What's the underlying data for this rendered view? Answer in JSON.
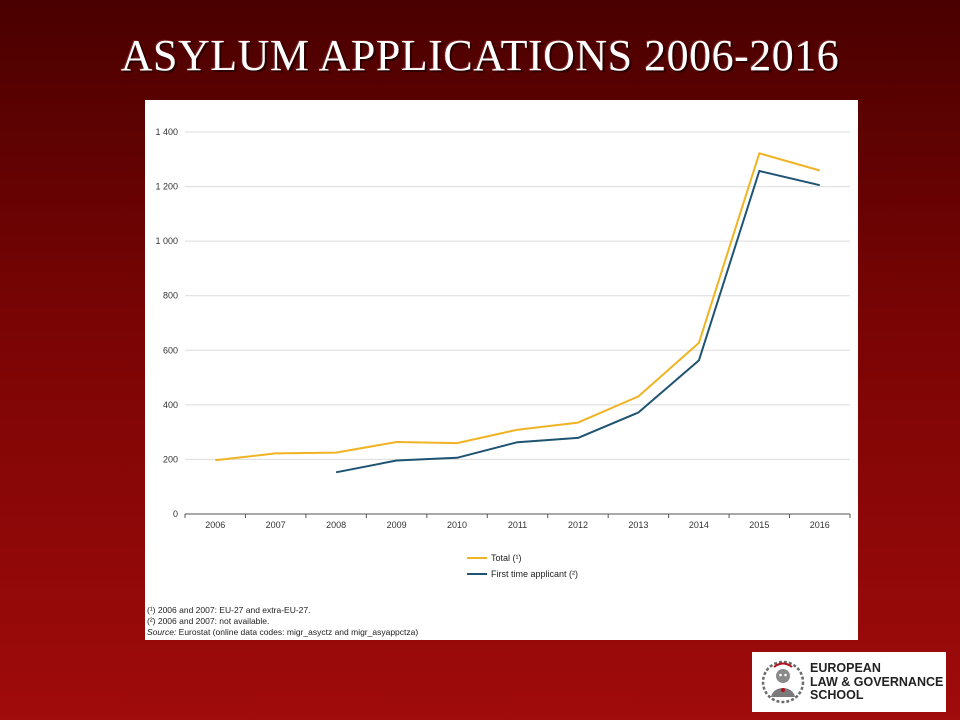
{
  "slide": {
    "title": "ASYLUM APPLICATIONS 2006-2016"
  },
  "chart_data": {
    "type": "line",
    "x": [
      "2006",
      "2007",
      "2008",
      "2009",
      "2010",
      "2011",
      "2012",
      "2013",
      "2014",
      "2015",
      "2016"
    ],
    "y_ticks": [
      "0",
      "200",
      "400",
      "600",
      "800",
      "1 000",
      "1 200",
      "1 400"
    ],
    "ylim": [
      0,
      1400
    ],
    "grid": true,
    "legend_position": "bottom",
    "series": [
      {
        "name": "Total (¹)",
        "color": "#f0b323",
        "values": [
          197,
          222,
          225,
          264,
          260,
          309,
          335,
          431,
          627,
          1322,
          1259
        ]
      },
      {
        "name": "First time applicant (²)",
        "color": "#1f5372",
        "values": [
          null,
          null,
          153,
          196,
          206,
          263,
          279,
          372,
          563,
          1257,
          1205
        ]
      }
    ]
  },
  "footnotes": {
    "note1": "(¹) 2006 and 2007: EU-27 and extra-EU-27.",
    "note2": "(²) 2006 and 2007: not available.",
    "source_label": "Source:",
    "source_text": " Eurostat (online data codes: migr_asyctz and migr_asyappctza)"
  },
  "logo": {
    "line1": "EUROPEAN",
    "line2": "LAW & GOVERNANCE",
    "line3": "SCHOOL",
    "icon": "laureate-figure-emblem"
  }
}
